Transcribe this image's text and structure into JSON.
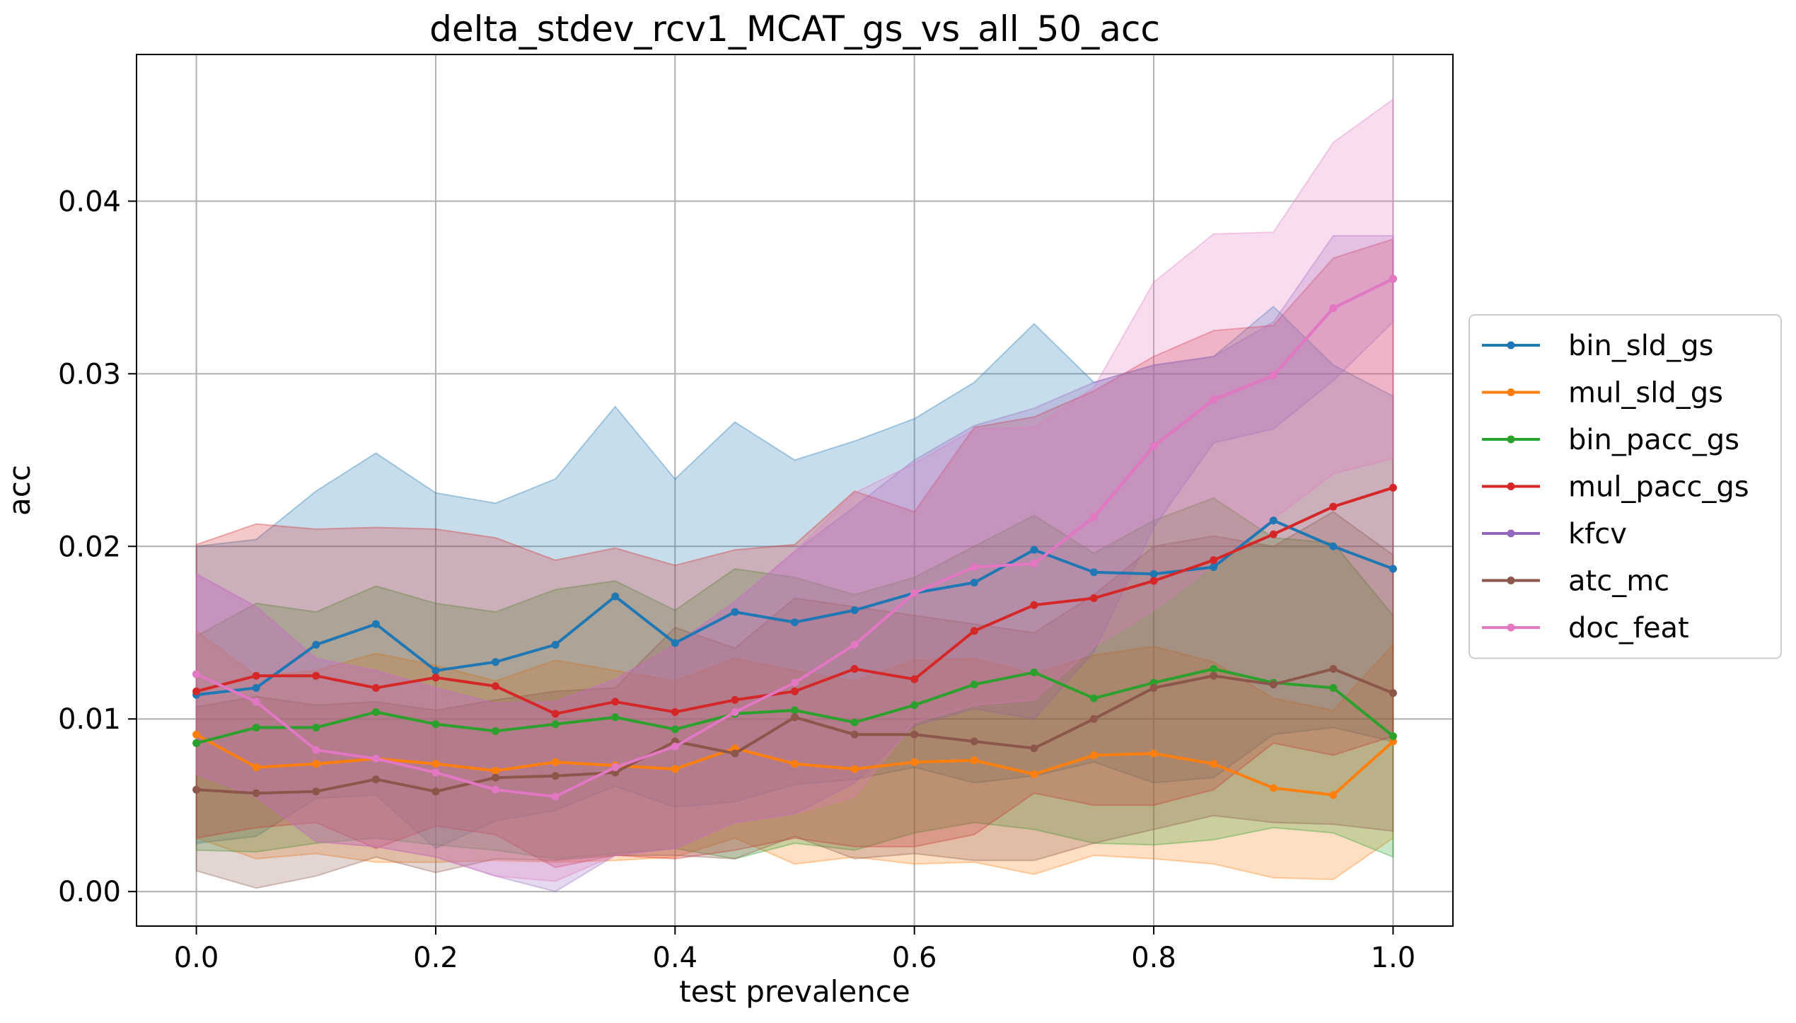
{
  "chart_data": {
    "type": "line",
    "title": "delta_stdev_rcv1_MCAT_gs_vs_all_50_acc",
    "xlabel": "test prevalence",
    "ylabel": "acc",
    "xlim": [
      -0.05,
      1.05
    ],
    "ylim": [
      -0.002,
      0.0485
    ],
    "xticks": [
      0.0,
      0.2,
      0.4,
      0.6,
      0.8,
      1.0
    ],
    "xtick_labels": [
      "0.0",
      "0.2",
      "0.4",
      "0.6",
      "0.8",
      "1.0"
    ],
    "yticks": [
      0.0,
      0.01,
      0.02,
      0.03,
      0.04
    ],
    "ytick_labels": [
      "0.00",
      "0.01",
      "0.02",
      "0.03",
      "0.04"
    ],
    "grid": true,
    "legend_position": "center-right-outside",
    "x": [
      0.0,
      0.05,
      0.1,
      0.15,
      0.2,
      0.25,
      0.3,
      0.35,
      0.4,
      0.45,
      0.5,
      0.55,
      0.6,
      0.65,
      0.7,
      0.75,
      0.8,
      0.85,
      0.9,
      0.95,
      1.0
    ],
    "series": [
      {
        "name": "bin_sld_gs",
        "color": "#1f77b4",
        "values": [
          0.0114,
          0.0118,
          0.0143,
          0.0155,
          0.0128,
          0.0133,
          0.0143,
          0.0171,
          0.0144,
          0.0162,
          0.0156,
          0.0163,
          0.0173,
          0.0179,
          0.0198,
          0.0185,
          0.0184,
          0.0188,
          0.0215,
          0.02,
          0.0187
        ],
        "upper": [
          0.02,
          0.0204,
          0.0232,
          0.0254,
          0.0231,
          0.0225,
          0.0239,
          0.0281,
          0.0239,
          0.0272,
          0.025,
          0.0261,
          0.0274,
          0.0295,
          0.0329,
          0.0295,
          0.0305,
          0.031,
          0.0339,
          0.0305,
          0.0287
        ],
        "lower": [
          0.0028,
          0.0032,
          0.0054,
          0.0056,
          0.0025,
          0.0041,
          0.0047,
          0.0061,
          0.0049,
          0.0052,
          0.0062,
          0.0065,
          0.0072,
          0.0063,
          0.0067,
          0.0075,
          0.0063,
          0.0066,
          0.0091,
          0.0095,
          0.0087
        ]
      },
      {
        "name": "mul_sld_gs",
        "color": "#ff7f0e",
        "values": [
          0.0091,
          0.0072,
          0.0074,
          0.0077,
          0.0074,
          0.007,
          0.0075,
          0.0073,
          0.0071,
          0.0083,
          0.0074,
          0.0071,
          0.0075,
          0.0076,
          0.0068,
          0.0079,
          0.008,
          0.0074,
          0.006,
          0.0056,
          0.0087
        ],
        "upper": [
          0.0151,
          0.0125,
          0.0128,
          0.0138,
          0.0131,
          0.0122,
          0.0134,
          0.0128,
          0.0122,
          0.0135,
          0.0128,
          0.0122,
          0.0134,
          0.0135,
          0.0126,
          0.0137,
          0.0142,
          0.0133,
          0.0112,
          0.0105,
          0.0143
        ],
        "lower": [
          0.0031,
          0.0019,
          0.0022,
          0.0017,
          0.0017,
          0.0018,
          0.0017,
          0.0018,
          0.002,
          0.0031,
          0.0016,
          0.002,
          0.0016,
          0.0017,
          0.001,
          0.0021,
          0.0019,
          0.0016,
          0.0008,
          0.0007,
          0.0031
        ]
      },
      {
        "name": "bin_pacc_gs",
        "color": "#2ca02c",
        "values": [
          0.0086,
          0.0095,
          0.0095,
          0.0104,
          0.0097,
          0.0093,
          0.0097,
          0.0101,
          0.0094,
          0.0103,
          0.0105,
          0.0098,
          0.0108,
          0.012,
          0.0127,
          0.0112,
          0.0121,
          0.0129,
          0.0121,
          0.0118,
          0.009
        ],
        "upper": [
          0.0148,
          0.0167,
          0.0162,
          0.0177,
          0.0167,
          0.0162,
          0.0175,
          0.018,
          0.0163,
          0.0187,
          0.0182,
          0.0172,
          0.0182,
          0.02,
          0.0218,
          0.0196,
          0.0215,
          0.0228,
          0.0205,
          0.0202,
          0.016
        ],
        "lower": [
          0.0024,
          0.0023,
          0.0028,
          0.0031,
          0.0027,
          0.0024,
          0.0019,
          0.0022,
          0.0025,
          0.0019,
          0.0028,
          0.0024,
          0.0034,
          0.004,
          0.0036,
          0.0028,
          0.0027,
          0.003,
          0.0037,
          0.0034,
          0.002
        ]
      },
      {
        "name": "mul_pacc_gs",
        "color": "#d62728",
        "values": [
          0.0116,
          0.0125,
          0.0125,
          0.0118,
          0.0124,
          0.0119,
          0.0103,
          0.011,
          0.0104,
          0.0111,
          0.0116,
          0.0129,
          0.0123,
          0.0151,
          0.0166,
          0.017,
          0.018,
          0.0192,
          0.0207,
          0.0223,
          0.0234
        ],
        "upper": [
          0.0201,
          0.0213,
          0.021,
          0.0211,
          0.021,
          0.0205,
          0.0192,
          0.0199,
          0.0189,
          0.0198,
          0.0201,
          0.0232,
          0.022,
          0.0269,
          0.0275,
          0.029,
          0.031,
          0.0325,
          0.0328,
          0.0367,
          0.0378
        ],
        "lower": [
          0.0031,
          0.0037,
          0.004,
          0.0025,
          0.0038,
          0.0033,
          0.0014,
          0.0021,
          0.0019,
          0.0024,
          0.0031,
          0.0026,
          0.0026,
          0.0033,
          0.0057,
          0.005,
          0.005,
          0.0059,
          0.0086,
          0.0079,
          0.009
        ]
      },
      {
        "name": "kfcv",
        "color": "#9467bd",
        "values": [
          0.0126,
          0.011,
          0.0082,
          0.0077,
          0.0069,
          0.0059,
          0.0055,
          0.0072,
          0.0084,
          0.0104,
          0.0121,
          0.0143,
          0.0173,
          0.0188,
          0.019,
          0.0217,
          0.0258,
          0.0285,
          0.0299,
          0.0338,
          0.0355
        ],
        "upper": [
          0.0184,
          0.0165,
          0.0135,
          0.0128,
          0.0118,
          0.0109,
          0.011,
          0.0123,
          0.0143,
          0.0168,
          0.0197,
          0.0223,
          0.025,
          0.027,
          0.028,
          0.0295,
          0.0305,
          0.031,
          0.033,
          0.038,
          0.038
        ],
        "lower": [
          0.0068,
          0.0055,
          0.0029,
          0.0026,
          0.002,
          0.0009,
          0.0,
          0.0021,
          0.0025,
          0.004,
          0.0045,
          0.0063,
          0.0096,
          0.0106,
          0.01,
          0.0139,
          0.0211,
          0.026,
          0.0268,
          0.0296,
          0.033
        ]
      },
      {
        "name": "atc_mc",
        "color": "#8c564b",
        "values": [
          0.0059,
          0.0057,
          0.0058,
          0.0065,
          0.0058,
          0.0066,
          0.0067,
          0.0069,
          0.0087,
          0.008,
          0.0101,
          0.0091,
          0.0091,
          0.0087,
          0.0083,
          0.01,
          0.0118,
          0.0125,
          0.012,
          0.0129,
          0.0115
        ],
        "upper": [
          0.0107,
          0.0113,
          0.0108,
          0.011,
          0.0105,
          0.0111,
          0.0116,
          0.0118,
          0.0153,
          0.0141,
          0.017,
          0.0165,
          0.016,
          0.0155,
          0.015,
          0.0172,
          0.02,
          0.0206,
          0.02,
          0.022,
          0.0195
        ],
        "lower": [
          0.0012,
          0.0002,
          0.0009,
          0.002,
          0.0011,
          0.0019,
          0.0018,
          0.0021,
          0.0021,
          0.0019,
          0.0032,
          0.0019,
          0.0022,
          0.0018,
          0.0018,
          0.0028,
          0.0036,
          0.0044,
          0.004,
          0.0039,
          0.0035
        ]
      },
      {
        "name": "doc_feat",
        "color": "#e377c2",
        "values": [
          0.0126,
          0.011,
          0.0082,
          0.0077,
          0.0069,
          0.0059,
          0.0055,
          0.0072,
          0.0084,
          0.0104,
          0.0121,
          0.0143,
          0.0173,
          0.0188,
          0.019,
          0.0217,
          0.0258,
          0.0285,
          0.0299,
          0.0338,
          0.0355
        ],
        "upper": [
          0.0184,
          0.0165,
          0.0135,
          0.0128,
          0.0118,
          0.0109,
          0.011,
          0.0123,
          0.0143,
          0.0168,
          0.0197,
          0.0231,
          0.0248,
          0.0268,
          0.0269,
          0.0292,
          0.0353,
          0.0381,
          0.0382,
          0.0434,
          0.0459
        ],
        "lower": [
          0.0068,
          0.0055,
          0.0029,
          0.0026,
          0.002,
          0.0009,
          0.0006,
          0.0021,
          0.0025,
          0.004,
          0.0045,
          0.0055,
          0.0098,
          0.0108,
          0.0111,
          0.0142,
          0.0163,
          0.0189,
          0.0216,
          0.0242,
          0.0251
        ]
      }
    ]
  }
}
